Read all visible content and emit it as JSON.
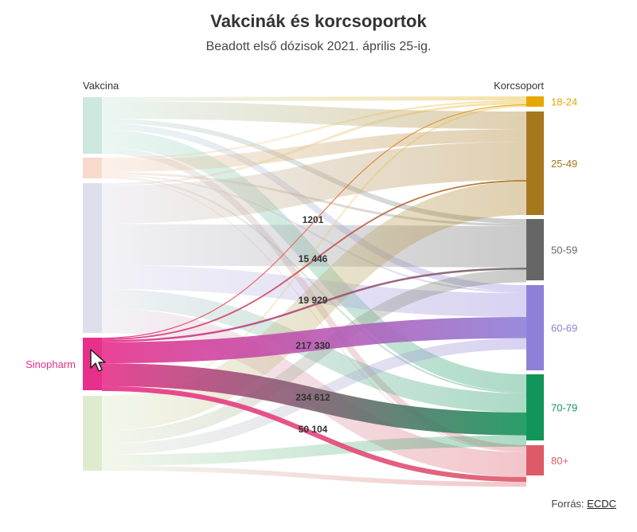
{
  "header": {
    "title": "Vakcinák és korcsoportok",
    "subtitle": "Beadott első dózisok 2021. április 25-ig.",
    "left_label": "Vakcina",
    "right_label": "Korcsoport"
  },
  "source": {
    "prefix": "Forrás:",
    "link": "ECDC"
  },
  "highlighted_vaccine": "Sinopharm",
  "chart_data": {
    "type": "sankey",
    "title": "Vakcinák és korcsoportok",
    "subtitle": "Beadott első dózisok 2021. április 25-ig.",
    "vaccines": [
      {
        "name": "",
        "color": "#c7e6dc",
        "highlight": false
      },
      {
        "name": "",
        "color": "#f6d6c3",
        "highlight": false
      },
      {
        "name": "",
        "color": "#dcdaea",
        "highlight": false
      },
      {
        "name": "Sinopharm",
        "color": "#e7308a",
        "highlight": true
      },
      {
        "name": "",
        "color": "#dbe9c8",
        "highlight": false
      }
    ],
    "age_groups": [
      {
        "name": "18-24",
        "color": "#e6a800"
      },
      {
        "name": "25-49",
        "color": "#a6781c"
      },
      {
        "name": "50-59",
        "color": "#666666"
      },
      {
        "name": "60-69",
        "color": "#8e7fd8"
      },
      {
        "name": "70-79",
        "color": "#12955a"
      },
      {
        "name": "80+",
        "color": "#dd5a68"
      }
    ],
    "highlighted_flows": [
      {
        "from": "Sinopharm",
        "to": "18-24",
        "value": 1201,
        "label": "1201"
      },
      {
        "from": "Sinopharm",
        "to": "25-49",
        "value": 15446,
        "label": "15 446"
      },
      {
        "from": "Sinopharm",
        "to": "50-59",
        "value": 19929,
        "label": "19 929"
      },
      {
        "from": "Sinopharm",
        "to": "60-69",
        "value": 217330,
        "label": "217 330"
      },
      {
        "from": "Sinopharm",
        "to": "70-79",
        "value": 234612,
        "label": "234 612"
      },
      {
        "from": "Sinopharm",
        "to": "80+",
        "value": 50104,
        "label": "50 104"
      }
    ]
  }
}
